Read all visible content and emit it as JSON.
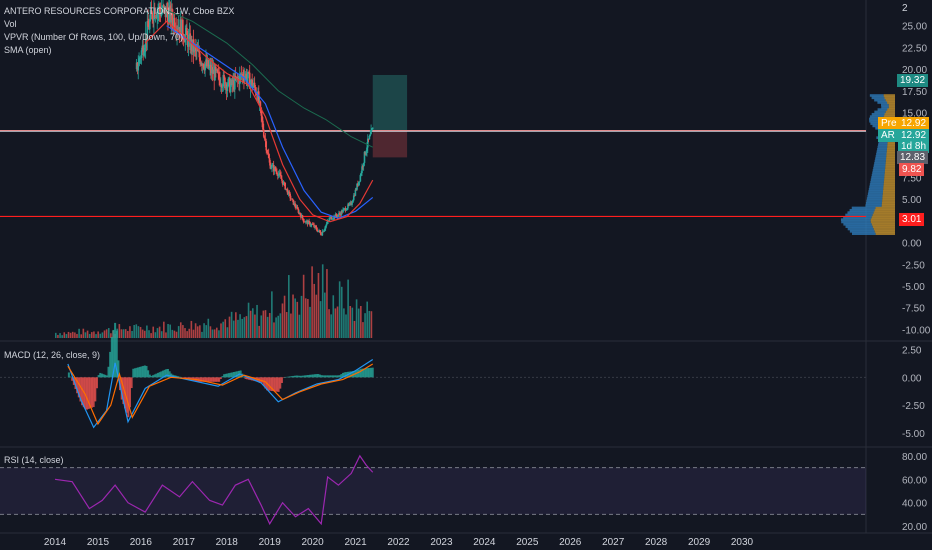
{
  "header": {
    "symbol_line": "ANTERO RESOURCES CORPORATION, 1W, Cboe BZX",
    "vol": "Vol",
    "vpvr": "VPVR (Number Of Rows, 100, Up/Down, 70)",
    "sma": "SMA (open)"
  },
  "macd_label": "MACD (12, 26, close, 9)",
  "rsi_label": "RSI (14, close)",
  "price_tags": {
    "top": "2",
    "target": "19.32",
    "pre_label": "Pre",
    "pre_value": "12.92",
    "ar_label": "AR",
    "ar_value": "12.92",
    "countdown": "1d 8h",
    "resistance": "12.83",
    "stop": "9.82",
    "support": "3.01"
  },
  "colors": {
    "background": "#131722",
    "up": "#26a69a",
    "down": "#ef5350",
    "sma_red": "#e53935",
    "sma_blue": "#2962ff",
    "sma_green": "#1b6b4f",
    "rsi_line": "#9c27b0",
    "target_zone": "#1f4e4f",
    "stop_zone": "#5b2a32",
    "support_line": "#ff1e1e"
  },
  "chart_data": [
    {
      "type": "candlestick",
      "title": "ANTERO RESOURCES CORPORATION, 1W, Cboe BZX",
      "x_ticks": [
        "2014",
        "2015",
        "2016",
        "2017",
        "2018",
        "2019",
        "2020",
        "2021",
        "2022",
        "2023",
        "2024",
        "2025",
        "2026",
        "2027",
        "2028",
        "2029",
        "2030"
      ],
      "y_ticks": [
        "25.00",
        "22.50",
        "20.00",
        "17.50",
        "15.00",
        "12.50",
        "10.00",
        "7.50",
        "5.00",
        "2.50",
        "0.00",
        "-2.50",
        "-5.00",
        "-7.50",
        "-10.00"
      ],
      "ylim": [
        -11,
        27.5
      ],
      "close_path": [
        {
          "x": 2015.9,
          "y": 20.0
        },
        {
          "x": 2016.1,
          "y": 23.5
        },
        {
          "x": 2016.3,
          "y": 27.0
        },
        {
          "x": 2016.6,
          "y": 26.5
        },
        {
          "x": 2016.9,
          "y": 25.0
        },
        {
          "x": 2017.2,
          "y": 22.5
        },
        {
          "x": 2017.5,
          "y": 20.5
        },
        {
          "x": 2017.8,
          "y": 19.0
        },
        {
          "x": 2018.1,
          "y": 18.0
        },
        {
          "x": 2018.4,
          "y": 19.5
        },
        {
          "x": 2018.7,
          "y": 17.5
        },
        {
          "x": 2018.85,
          "y": 13.0
        },
        {
          "x": 2019.0,
          "y": 9.0
        },
        {
          "x": 2019.2,
          "y": 8.0
        },
        {
          "x": 2019.5,
          "y": 5.0
        },
        {
          "x": 2019.8,
          "y": 2.5
        },
        {
          "x": 2020.0,
          "y": 2.0
        },
        {
          "x": 2020.2,
          "y": 1.0
        },
        {
          "x": 2020.4,
          "y": 2.8
        },
        {
          "x": 2020.6,
          "y": 3.2
        },
        {
          "x": 2020.9,
          "y": 4.5
        },
        {
          "x": 2021.1,
          "y": 7.5
        },
        {
          "x": 2021.25,
          "y": 11.0
        },
        {
          "x": 2021.4,
          "y": 12.9
        }
      ],
      "sma_red": [
        {
          "x": 2016.1,
          "y": 23.0
        },
        {
          "x": 2016.6,
          "y": 25.5
        },
        {
          "x": 2017.0,
          "y": 23.8
        },
        {
          "x": 2017.5,
          "y": 21.5
        },
        {
          "x": 2018.0,
          "y": 19.5
        },
        {
          "x": 2018.5,
          "y": 18.2
        },
        {
          "x": 2018.9,
          "y": 14.5
        },
        {
          "x": 2019.3,
          "y": 9.0
        },
        {
          "x": 2019.7,
          "y": 5.0
        },
        {
          "x": 2020.0,
          "y": 3.2
        },
        {
          "x": 2020.4,
          "y": 2.4
        },
        {
          "x": 2020.8,
          "y": 3.0
        },
        {
          "x": 2021.1,
          "y": 4.5
        },
        {
          "x": 2021.4,
          "y": 7.2
        }
      ],
      "sma_blue": [
        {
          "x": 2016.6,
          "y": 25.0
        },
        {
          "x": 2017.2,
          "y": 23.0
        },
        {
          "x": 2017.8,
          "y": 21.0
        },
        {
          "x": 2018.4,
          "y": 19.0
        },
        {
          "x": 2018.9,
          "y": 16.0
        },
        {
          "x": 2019.3,
          "y": 11.0
        },
        {
          "x": 2019.8,
          "y": 6.0
        },
        {
          "x": 2020.2,
          "y": 3.5
        },
        {
          "x": 2020.6,
          "y": 2.8
        },
        {
          "x": 2021.0,
          "y": 3.6
        },
        {
          "x": 2021.4,
          "y": 5.2
        }
      ],
      "sma_green": [
        {
          "x": 2016.5,
          "y": 27.0
        },
        {
          "x": 2017.2,
          "y": 25.5
        },
        {
          "x": 2018.0,
          "y": 23.0
        },
        {
          "x": 2018.6,
          "y": 20.5
        },
        {
          "x": 2019.2,
          "y": 17.5
        },
        {
          "x": 2019.8,
          "y": 15.5
        },
        {
          "x": 2020.3,
          "y": 14.2
        },
        {
          "x": 2020.9,
          "y": 12.2
        },
        {
          "x": 2021.4,
          "y": 11.0
        }
      ],
      "horizontal_lines": [
        12.92,
        12.83,
        3.01
      ],
      "position_tool": {
        "x_start": 2021.4,
        "x_end": 2022.2,
        "entry": 12.92,
        "target": 19.32,
        "stop": 9.82
      }
    },
    {
      "type": "bar",
      "title": "Vol",
      "note": "weekly volume bars, grows toward 2020-2021",
      "x_range": [
        2014,
        2021.4
      ],
      "relative_heights": [
        0.1,
        0.12,
        0.15,
        0.18,
        0.2,
        0.22,
        0.25,
        0.3,
        0.35,
        0.45,
        0.6,
        0.85,
        1.0,
        0.75,
        0.55
      ]
    },
    {
      "type": "line",
      "title": "MACD (12, 26, close, 9)",
      "y_ticks": [
        "2.50",
        "0.00",
        "-2.50",
        "-5.00"
      ],
      "ylim": [
        -6,
        3
      ],
      "series": [
        {
          "name": "MACD",
          "points": [
            {
              "x": 2014.3,
              "y": 1.2
            },
            {
              "x": 2014.6,
              "y": -2.0
            },
            {
              "x": 2014.9,
              "y": -4.5
            },
            {
              "x": 2015.2,
              "y": -3.0
            },
            {
              "x": 2015.4,
              "y": 1.3
            },
            {
              "x": 2015.7,
              "y": -4.0
            },
            {
              "x": 2016.1,
              "y": -1.0
            },
            {
              "x": 2016.6,
              "y": 0.2
            },
            {
              "x": 2017.2,
              "y": -0.3
            },
            {
              "x": 2017.8,
              "y": -0.8
            },
            {
              "x": 2018.3,
              "y": 0.3
            },
            {
              "x": 2018.8,
              "y": -0.5
            },
            {
              "x": 2019.2,
              "y": -2.2
            },
            {
              "x": 2019.6,
              "y": -1.4
            },
            {
              "x": 2020.1,
              "y": -0.6
            },
            {
              "x": 2020.6,
              "y": -0.2
            },
            {
              "x": 2021.0,
              "y": 0.6
            },
            {
              "x": 2021.4,
              "y": 1.6
            }
          ]
        },
        {
          "name": "Signal",
          "points": [
            {
              "x": 2014.3,
              "y": 1.0
            },
            {
              "x": 2014.7,
              "y": -1.5
            },
            {
              "x": 2015.0,
              "y": -4.2
            },
            {
              "x": 2015.3,
              "y": -2.5
            },
            {
              "x": 2015.5,
              "y": 0.3
            },
            {
              "x": 2015.8,
              "y": -3.6
            },
            {
              "x": 2016.2,
              "y": -0.8
            },
            {
              "x": 2016.7,
              "y": 0.0
            },
            {
              "x": 2017.3,
              "y": -0.2
            },
            {
              "x": 2017.9,
              "y": -0.7
            },
            {
              "x": 2018.4,
              "y": 0.2
            },
            {
              "x": 2018.9,
              "y": -0.4
            },
            {
              "x": 2019.3,
              "y": -2.0
            },
            {
              "x": 2019.7,
              "y": -1.3
            },
            {
              "x": 2020.2,
              "y": -0.6
            },
            {
              "x": 2020.7,
              "y": -0.2
            },
            {
              "x": 2021.1,
              "y": 0.5
            },
            {
              "x": 2021.4,
              "y": 1.2
            }
          ]
        }
      ]
    },
    {
      "type": "line",
      "title": "RSI (14, close)",
      "y_ticks": [
        "80.00",
        "60.00",
        "40.00",
        "20.00"
      ],
      "ylim": [
        15,
        85
      ],
      "bands": [
        70,
        30
      ],
      "series": [
        {
          "name": "RSI",
          "points": [
            {
              "x": 2014.0,
              "y": 60
            },
            {
              "x": 2014.4,
              "y": 58
            },
            {
              "x": 2014.8,
              "y": 35
            },
            {
              "x": 2015.1,
              "y": 42
            },
            {
              "x": 2015.4,
              "y": 55
            },
            {
              "x": 2015.7,
              "y": 40
            },
            {
              "x": 2016.1,
              "y": 32
            },
            {
              "x": 2016.5,
              "y": 55
            },
            {
              "x": 2016.9,
              "y": 45
            },
            {
              "x": 2017.2,
              "y": 58
            },
            {
              "x": 2017.6,
              "y": 42
            },
            {
              "x": 2017.9,
              "y": 38
            },
            {
              "x": 2018.2,
              "y": 55
            },
            {
              "x": 2018.5,
              "y": 60
            },
            {
              "x": 2018.8,
              "y": 38
            },
            {
              "x": 2019.0,
              "y": 22
            },
            {
              "x": 2019.3,
              "y": 40
            },
            {
              "x": 2019.6,
              "y": 28
            },
            {
              "x": 2019.9,
              "y": 35
            },
            {
              "x": 2020.2,
              "y": 22
            },
            {
              "x": 2020.35,
              "y": 62
            },
            {
              "x": 2020.6,
              "y": 55
            },
            {
              "x": 2020.9,
              "y": 65
            },
            {
              "x": 2021.1,
              "y": 80
            },
            {
              "x": 2021.25,
              "y": 72
            },
            {
              "x": 2021.4,
              "y": 66
            }
          ]
        }
      ]
    }
  ]
}
